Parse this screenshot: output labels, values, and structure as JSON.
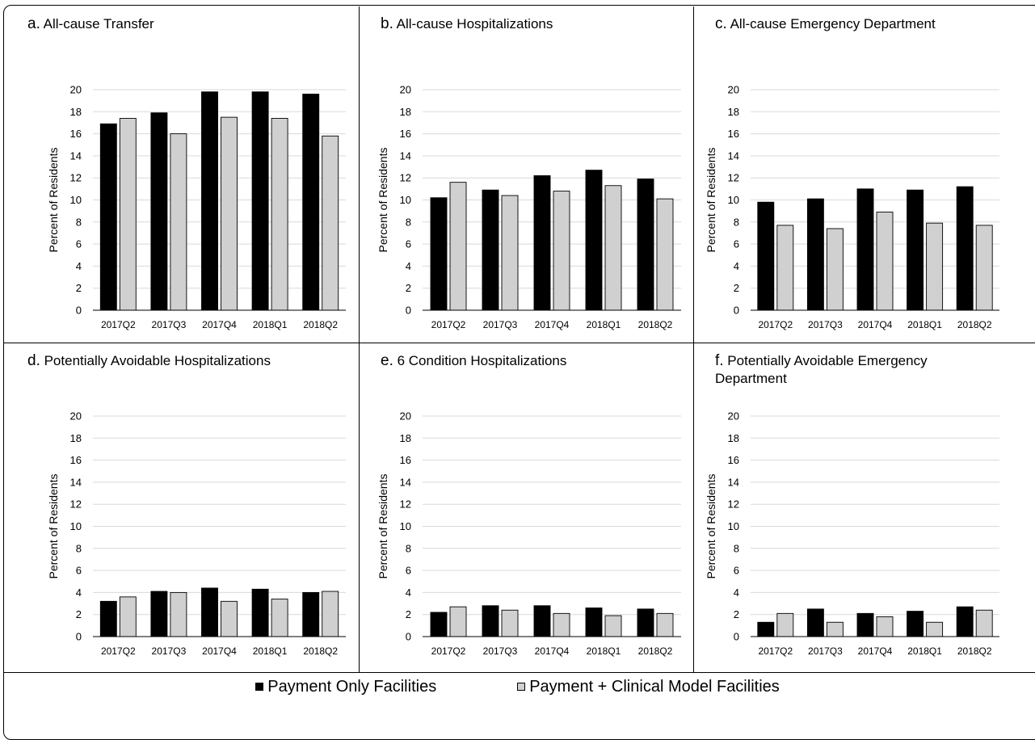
{
  "colors": {
    "payment_only": "#000000",
    "payment_clinical": "#d0d0d0",
    "gridline": "#d9d9d9"
  },
  "legend": {
    "payment_only": "Payment Only Facilities",
    "payment_clinical": "Payment + Clinical Model Facilities"
  },
  "chart_data": [
    {
      "type": "bar",
      "letter": "a.",
      "title": "All-cause Transfer",
      "ylabel": "Percent of Residents",
      "ylim": [
        0,
        20
      ],
      "yticks": [
        "0",
        "2",
        "4",
        "6",
        "8",
        "10",
        "12",
        "14",
        "16",
        "18",
        "20"
      ],
      "categories": [
        "2017Q2",
        "2017Q3",
        "2017Q4",
        "2018Q1",
        "2018Q2"
      ],
      "series": [
        {
          "name": "Payment Only Facilities",
          "values": [
            16.9,
            17.9,
            19.8,
            19.8,
            19.6
          ]
        },
        {
          "name": "Payment + Clinical Model Facilities",
          "values": [
            17.4,
            16.0,
            17.5,
            17.4,
            15.8
          ]
        }
      ],
      "grid": true
    },
    {
      "type": "bar",
      "letter": "b.",
      "title": "All-cause Hospitalizations",
      "ylabel": "Percent of Residents",
      "ylim": [
        0,
        20
      ],
      "yticks": [
        "0",
        "2",
        "4",
        "6",
        "8",
        "10",
        "12",
        "14",
        "16",
        "18",
        "20"
      ],
      "categories": [
        "2017Q2",
        "2017Q3",
        "2017Q4",
        "2018Q1",
        "2018Q2"
      ],
      "series": [
        {
          "name": "Payment Only Facilities",
          "values": [
            10.2,
            10.9,
            12.2,
            12.7,
            11.9
          ]
        },
        {
          "name": "Payment + Clinical Model Facilities",
          "values": [
            11.6,
            10.4,
            10.8,
            11.3,
            10.1
          ]
        }
      ],
      "grid": true
    },
    {
      "type": "bar",
      "letter": "c.",
      "title": "All-cause Emergency Department",
      "ylabel": "Percent of Residents",
      "ylim": [
        0,
        20
      ],
      "yticks": [
        "0",
        "2",
        "4",
        "6",
        "8",
        "10",
        "12",
        "14",
        "16",
        "18",
        "20"
      ],
      "categories": [
        "2017Q2",
        "2017Q3",
        "2017Q4",
        "2018Q1",
        "2018Q2"
      ],
      "series": [
        {
          "name": "Payment Only Facilities",
          "values": [
            9.8,
            10.1,
            11.0,
            10.9,
            11.2
          ]
        },
        {
          "name": "Payment + Clinical Model Facilities",
          "values": [
            7.7,
            7.4,
            8.9,
            7.9,
            7.7
          ]
        }
      ],
      "grid": true
    },
    {
      "type": "bar",
      "letter": "d.",
      "title": "Potentially Avoidable Hospitalizations",
      "ylabel": "Percent of Residents",
      "ylim": [
        0,
        20
      ],
      "yticks": [
        "0",
        "2",
        "4",
        "6",
        "8",
        "10",
        "12",
        "14",
        "16",
        "18",
        "20"
      ],
      "categories": [
        "2017Q2",
        "2017Q3",
        "2017Q4",
        "2018Q1",
        "2018Q2"
      ],
      "series": [
        {
          "name": "Payment Only Facilities",
          "values": [
            3.2,
            4.1,
            4.4,
            4.3,
            4.0
          ]
        },
        {
          "name": "Payment + Clinical Model Facilities",
          "values": [
            3.6,
            4.0,
            3.2,
            3.4,
            4.1
          ]
        }
      ],
      "grid": true
    },
    {
      "type": "bar",
      "letter": "e.",
      "title": "6 Condition Hospitalizations",
      "ylabel": "Percent of Residents",
      "ylim": [
        0,
        20
      ],
      "yticks": [
        "0",
        "2",
        "4",
        "6",
        "8",
        "10",
        "12",
        "14",
        "16",
        "18",
        "20"
      ],
      "categories": [
        "2017Q2",
        "2017Q3",
        "2017Q4",
        "2018Q1",
        "2018Q2"
      ],
      "series": [
        {
          "name": "Payment Only Facilities",
          "values": [
            2.2,
            2.8,
            2.8,
            2.6,
            2.5
          ]
        },
        {
          "name": "Payment + Clinical Model Facilities",
          "values": [
            2.7,
            2.4,
            2.1,
            1.9,
            2.1
          ]
        }
      ],
      "grid": true
    },
    {
      "type": "bar",
      "letter": "f.",
      "title": "Potentially Avoidable Emergency\nDepartment",
      "ylabel": "Percent of Residents",
      "ylim": [
        0,
        20
      ],
      "yticks": [
        "0",
        "2",
        "4",
        "6",
        "8",
        "10",
        "12",
        "14",
        "16",
        "18",
        "20"
      ],
      "categories": [
        "2017Q2",
        "2017Q3",
        "2017Q4",
        "2018Q1",
        "2018Q2"
      ],
      "series": [
        {
          "name": "Payment Only Facilities",
          "values": [
            1.3,
            2.5,
            2.1,
            2.3,
            2.7
          ]
        },
        {
          "name": "Payment + Clinical Model Facilities",
          "values": [
            2.1,
            1.3,
            1.8,
            1.3,
            2.4
          ]
        }
      ],
      "grid": true
    }
  ]
}
